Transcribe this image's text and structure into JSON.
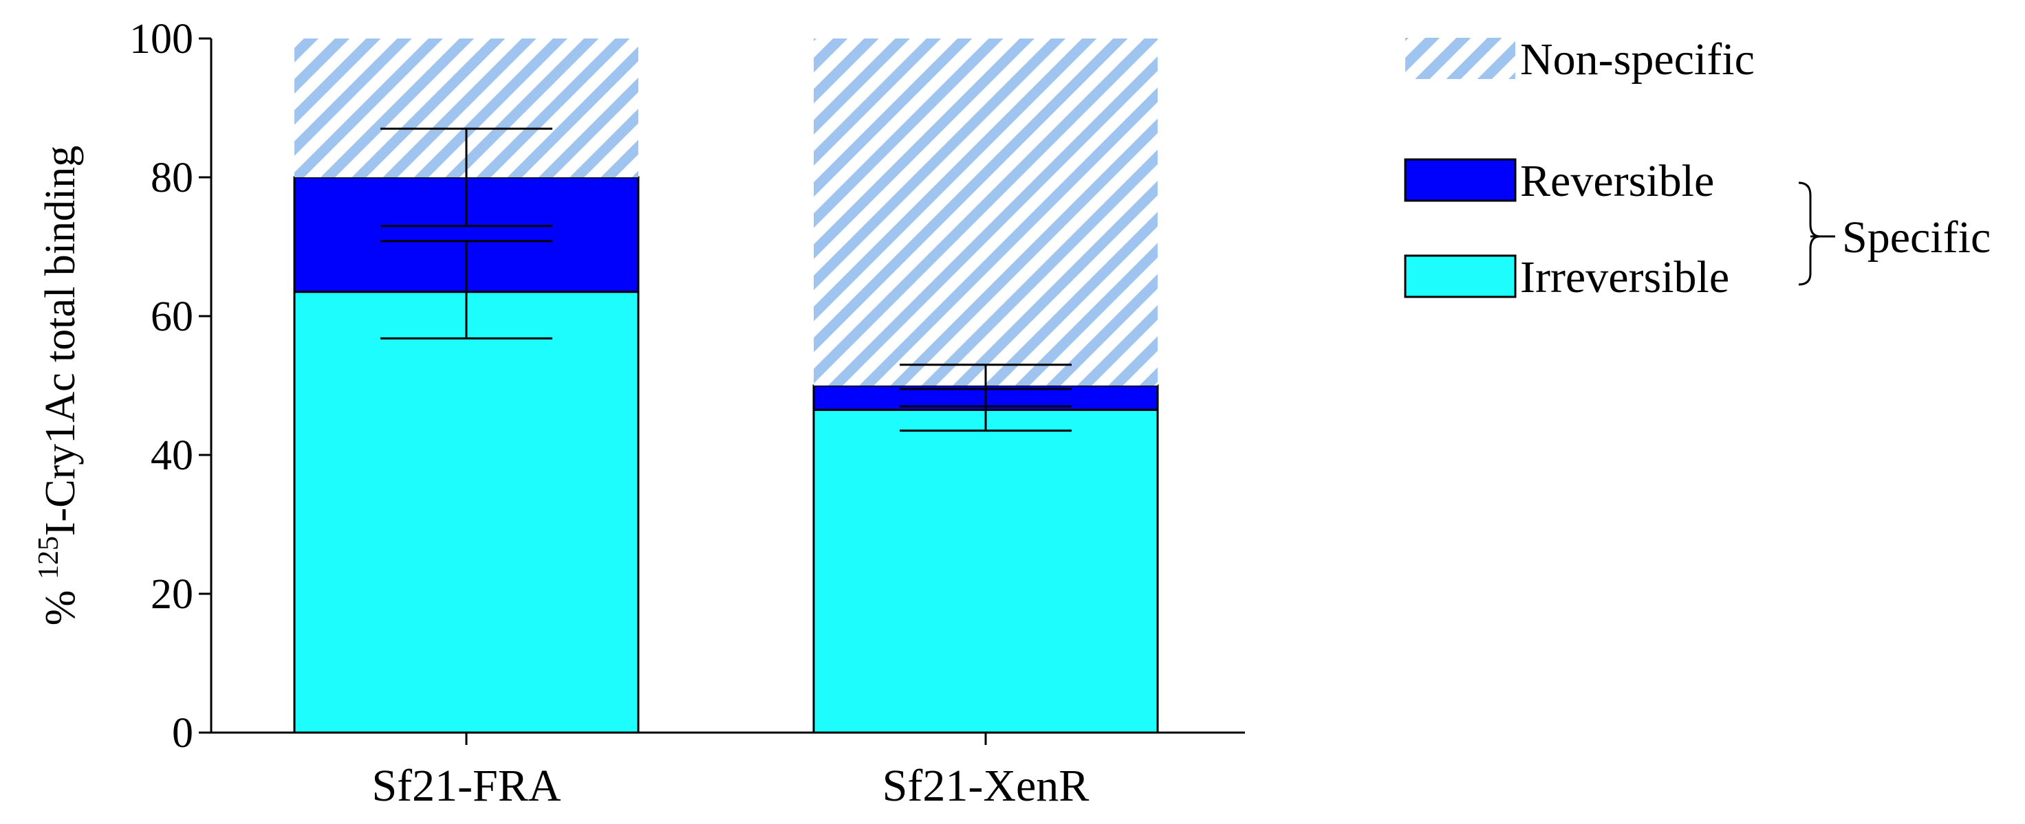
{
  "chart_data": {
    "type": "bar",
    "stacked": true,
    "categories": [
      "Sf21-FRA",
      "Sf21-XenR"
    ],
    "series": [
      {
        "name": "Irreversible",
        "values": [
          63.5,
          46.5
        ],
        "color": "#1dfdfd",
        "pattern": "solid"
      },
      {
        "name": "Reversible",
        "values": [
          16.5,
          3.5
        ],
        "color": "#0000fd",
        "pattern": "solid"
      },
      {
        "name": "Non-specific",
        "values": [
          20,
          50
        ],
        "color": "#9fc4f0",
        "pattern": "diagonal-hatch"
      }
    ],
    "error_bars": [
      {
        "category": "Sf21-FRA",
        "center": 63.5,
        "low": 56.8,
        "high": 70.8
      },
      {
        "category": "Sf21-FRA",
        "center": 80,
        "low": 73,
        "high": 87
      },
      {
        "category": "Sf21-XenR",
        "center": 46.5,
        "low": 43.5,
        "high": 49.5
      },
      {
        "category": "Sf21-XenR",
        "center": 50,
        "low": 47,
        "high": 53
      }
    ],
    "y_axis": {
      "title_pre": "% ",
      "title_sup": "125",
      "title_post": "I-Cry1Ac total binding",
      "ylim": [
        0,
        100
      ],
      "ticks": [
        0,
        20,
        40,
        60,
        80,
        100
      ],
      "tick_labels": [
        "0",
        "20",
        "40",
        "60",
        "80",
        "100"
      ]
    },
    "legend": {
      "position": "right",
      "items": [
        {
          "label": "Non-specific",
          "series": "Non-specific"
        },
        {
          "label": "Reversible",
          "series": "Reversible"
        },
        {
          "label": "Irreversible",
          "series": "Irreversible"
        }
      ],
      "group_label": "Specific"
    },
    "grid": false
  }
}
